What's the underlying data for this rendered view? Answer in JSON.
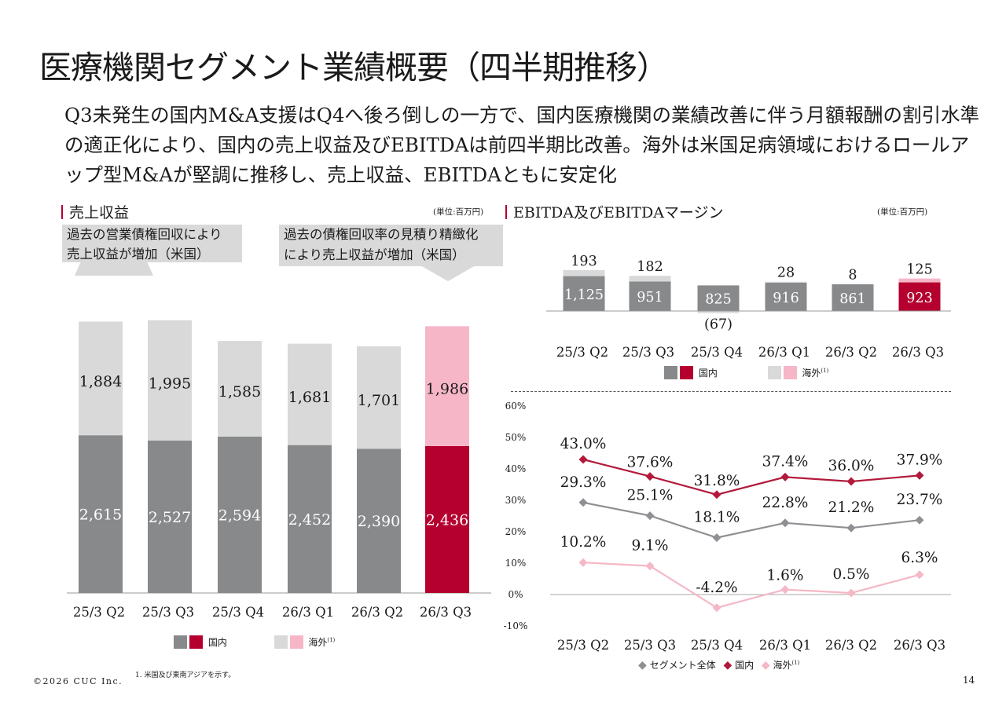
{
  "title": "医療機関セグメント業績概要（四半期推移）",
  "summary": "Q3未発生の国内M&A支援はQ4へ後ろ倒しの一方で、国内医療機関の業績改善に伴う月額報酬の割引水準の適正化により、国内の売上収益及びEBITDAは前四半期比改善。海外は米国足病領域におけるロールアップ型M&Aが堅調に推移し、売上収益、EBITDAともに安定化",
  "colors": {
    "domestic": "#88898b",
    "domestic_highlight": "#b5002f",
    "overseas": "#d9d9d9",
    "overseas_highlight": "#f7b6c8",
    "segment_total_line": "#8f9093",
    "domestic_line": "#b21a3b",
    "overseas_line": "#f5b8c6",
    "accent": "#b5002f"
  },
  "revenue_panel": {
    "title": "売上収益",
    "unit": "(単位:百万円)",
    "callout_left": [
      "過去の営業債権回収により",
      "売上収益が増加（米国）"
    ],
    "callout_right": [
      "過去の債権回収率の見積り精緻化",
      "により売上収益が増加（米国）"
    ],
    "legend": {
      "domestic": "国内",
      "overseas": "海外",
      "overseas_note": "(1)"
    }
  },
  "ebitda_panel": {
    "title": "EBITDA及びEBITDAマージン",
    "unit": "(単位:百万円)",
    "legend": {
      "domestic": "国内",
      "overseas": "海外",
      "overseas_note": "(1)"
    }
  },
  "margin_panel": {
    "legend": {
      "total": "セグメント全体",
      "domestic": "国内",
      "overseas": "海外",
      "overseas_note": "(1)"
    }
  },
  "chart_data": [
    {
      "type": "bar",
      "stacked": true,
      "title": "売上収益",
      "categories": [
        "25/3 Q2",
        "25/3 Q3",
        "25/3 Q4",
        "26/3 Q1",
        "26/3 Q2",
        "26/3 Q3"
      ],
      "series": [
        {
          "name": "国内",
          "values": [
            2615,
            2527,
            2594,
            2452,
            2390,
            2436
          ],
          "labels": [
            "2,615",
            "2,527",
            "2,594",
            "2,452",
            "2,390",
            "2,436"
          ]
        },
        {
          "name": "海外",
          "values": [
            1884,
            1995,
            1585,
            1681,
            1701,
            1986
          ],
          "labels": [
            "1,884",
            "1,995",
            "1,585",
            "1,681",
            "1,701",
            "1,986"
          ]
        }
      ],
      "highlight_index": 5,
      "ylim": [
        0,
        4500
      ]
    },
    {
      "type": "bar",
      "stacked": true,
      "title": "EBITDA及びEBITDAマージン",
      "categories": [
        "25/3 Q2",
        "25/3 Q3",
        "25/3 Q4",
        "26/3 Q1",
        "26/3 Q2",
        "26/3 Q3"
      ],
      "series": [
        {
          "name": "国内",
          "values": [
            1125,
            951,
            825,
            916,
            861,
            923
          ],
          "labels": [
            "1,125",
            "951",
            "825",
            "916",
            "861",
            "923"
          ]
        },
        {
          "name": "海外",
          "values": [
            193,
            182,
            -67,
            28,
            8,
            125
          ],
          "labels": [
            "193",
            "182",
            "(67)",
            "28",
            "8",
            "125"
          ]
        }
      ],
      "highlight_index": 5
    },
    {
      "type": "line",
      "title": "EBITDAマージン",
      "categories": [
        "25/3 Q2",
        "25/3 Q3",
        "25/3 Q4",
        "26/3 Q1",
        "26/3 Q2",
        "26/3 Q3"
      ],
      "ylim": [
        -10,
        60
      ],
      "yticks": [
        "60%",
        "50%",
        "40%",
        "30%",
        "20%",
        "10%",
        "0%",
        "-10%"
      ],
      "series": [
        {
          "name": "セグメント全体",
          "values": [
            29.3,
            25.1,
            18.1,
            22.8,
            21.2,
            23.7
          ],
          "labels": [
            "29.3%",
            "25.1%",
            "18.1%",
            "22.8%",
            "21.2%",
            "23.7%"
          ]
        },
        {
          "name": "国内",
          "values": [
            43.0,
            37.6,
            31.8,
            37.4,
            36.0,
            37.9
          ],
          "labels": [
            "43.0%",
            "37.6%",
            "31.8%",
            "37.4%",
            "36.0%",
            "37.9%"
          ]
        },
        {
          "name": "海外",
          "values": [
            10.2,
            9.1,
            -4.2,
            1.6,
            0.5,
            6.3
          ],
          "labels": [
            "10.2%",
            "9.1%",
            "-4.2%",
            "1.6%",
            "0.5%",
            "6.3%"
          ]
        }
      ]
    }
  ],
  "footnote": "1. 米国及び東南アジアを示す。",
  "copyright": "©2026 CUC Inc.",
  "page_number": "14"
}
